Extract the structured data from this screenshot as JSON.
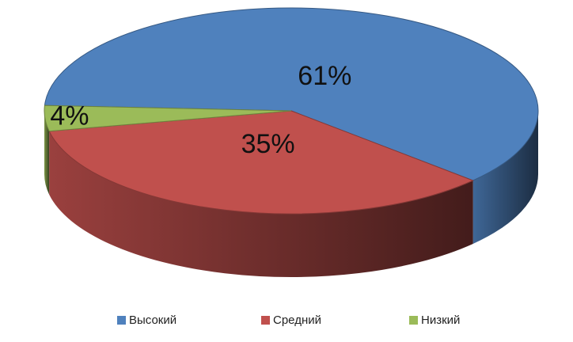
{
  "chart_data": {
    "type": "pie",
    "categories": [
      "Высокий",
      "Средний",
      "Низкий"
    ],
    "values": [
      61,
      35,
      4
    ],
    "value_labels": [
      "61%",
      "35%",
      "4%"
    ],
    "colors": [
      "#4f81bd",
      "#c0504d",
      "#9bbb59"
    ],
    "legend": "bottom"
  }
}
